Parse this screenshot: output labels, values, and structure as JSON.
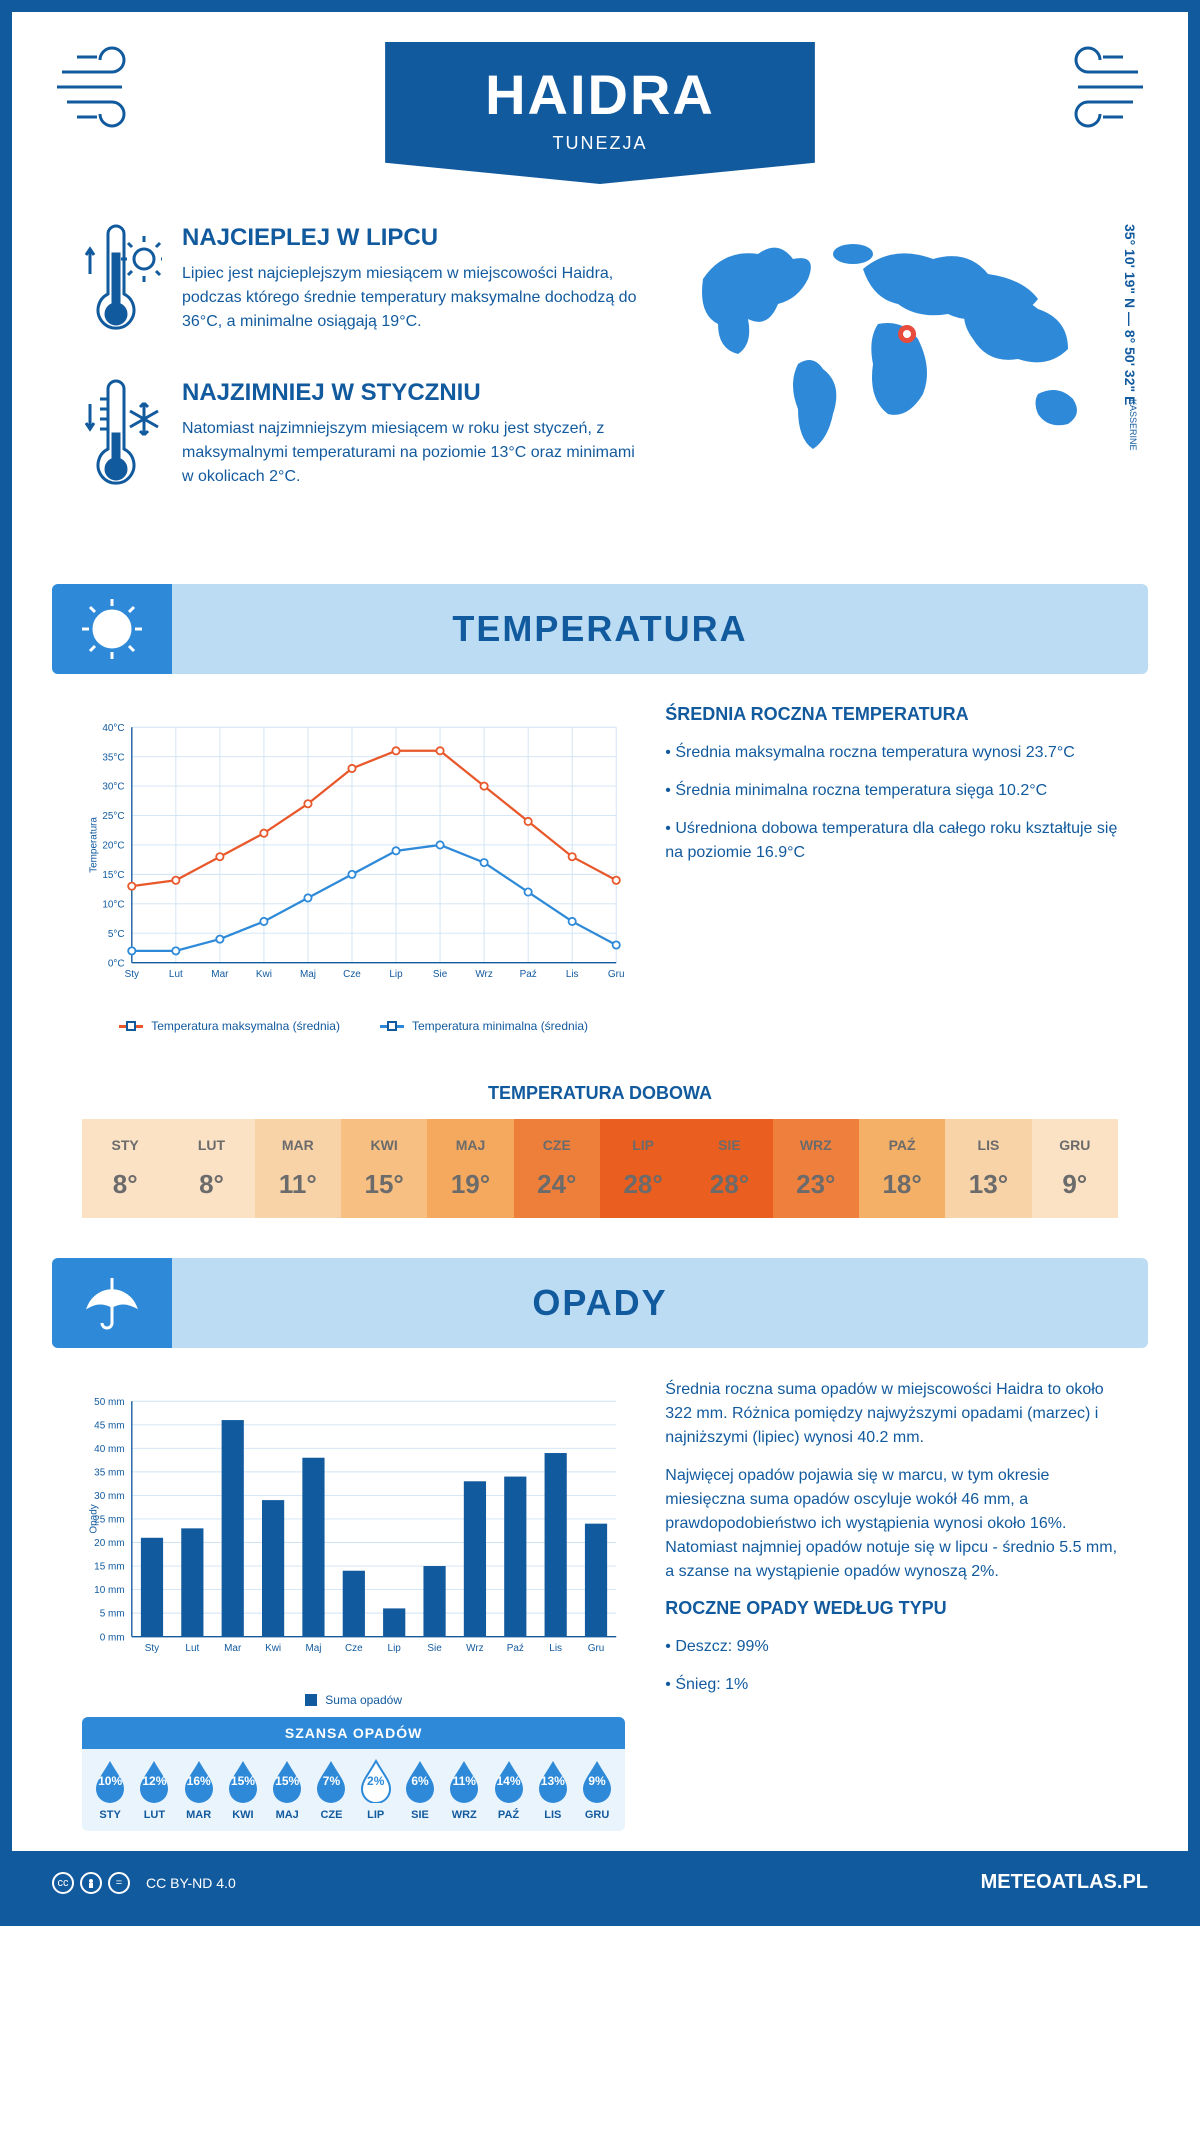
{
  "header": {
    "city": "HAIDRA",
    "country": "TUNEZJA"
  },
  "intro": {
    "hot": {
      "title": "NAJCIEPLEJ W LIPCU",
      "text": "Lipiec jest najcieplejszym miesiącem w miejscowości Haidra, podczas którego średnie temperatury maksymalne dochodzą do 36°C, a minimalne osiągają 19°C."
    },
    "cold": {
      "title": "NAJZIMNIEJ W STYCZNIU",
      "text": "Natomiast najzimniejszym miesiącem w roku jest styczeń, z maksymalnymi temperaturami na poziomie 13°C oraz minimami w okolicach 2°C."
    },
    "coords": "35° 10' 19\" N — 8° 50' 32\" E",
    "region": "KASSERINE",
    "marker": {
      "left_pct": 50,
      "top_pct": 42
    }
  },
  "months_short": [
    "Sty",
    "Lut",
    "Mar",
    "Kwi",
    "Maj",
    "Cze",
    "Lip",
    "Sie",
    "Wrz",
    "Paź",
    "Lis",
    "Gru"
  ],
  "months_upper": [
    "STY",
    "LUT",
    "MAR",
    "KWI",
    "MAJ",
    "CZE",
    "LIP",
    "SIE",
    "WRZ",
    "PAŹ",
    "LIS",
    "GRU"
  ],
  "temperature": {
    "section_title": "TEMPERATURA",
    "y_label": "Temperatura",
    "ylim": [
      0,
      40
    ],
    "ytick_step": 5,
    "ytick_suffix": "°C",
    "max_series": {
      "label": "Temperatura maksymalna (średnia)",
      "color": "#e8582b",
      "values": [
        13,
        14,
        18,
        22,
        27,
        33,
        36,
        36,
        30,
        24,
        18,
        14
      ]
    },
    "min_series": {
      "label": "Temperatura minimalna (średnia)",
      "color": "#2e8ad8",
      "values": [
        2,
        2,
        4,
        7,
        11,
        15,
        19,
        20,
        17,
        12,
        7,
        3
      ]
    },
    "grid_color": "#cfe3f4",
    "axis_color": "#125a9e",
    "side": {
      "title": "ŚREDNIA ROCZNA TEMPERATURA",
      "b1": "• Średnia maksymalna roczna temperatura wynosi 23.7°C",
      "b2": "• Średnia minimalna roczna temperatura sięga 10.2°C",
      "b3": "• Uśredniona dobowa temperatura dla całego roku kształtuje się na poziomie 16.9°C"
    },
    "daily": {
      "title": "TEMPERATURA DOBOWA",
      "values": [
        "8°",
        "8°",
        "11°",
        "15°",
        "19°",
        "24°",
        "28°",
        "28°",
        "23°",
        "18°",
        "13°",
        "9°"
      ],
      "colors": [
        "#fbe2c5",
        "#fbe2c5",
        "#f9d3a8",
        "#f7bf82",
        "#f4a95e",
        "#ee7f3b",
        "#ea5e1f",
        "#ea5e1f",
        "#ef7f3c",
        "#f5b068",
        "#f9d3a8",
        "#fbe2c5"
      ]
    }
  },
  "precip": {
    "section_title": "OPADY",
    "y_label": "Opady",
    "ylim": [
      0,
      50
    ],
    "ytick_step": 5,
    "ytick_suffix": " mm",
    "bar_color": "#125a9e",
    "grid_color": "#cfe3f4",
    "axis_color": "#125a9e",
    "series_label": "Suma opadów",
    "values": [
      21,
      23,
      46,
      29,
      38,
      14,
      6,
      15,
      33,
      34,
      39,
      24
    ],
    "side": {
      "p1": "Średnia roczna suma opadów w miejscowości Haidra to około 322 mm. Różnica pomiędzy najwyższymi opadami (marzec) i najniższymi (lipiec) wynosi 40.2 mm.",
      "p2": "Najwięcej opadów pojawia się w marcu, w tym okresie miesięczna suma opadów oscyluje wokół 46 mm, a prawdopodobieństwo ich wystąpienia wynosi około 16%. Natomiast najmniej opadów notuje się w lipcu - średnio 5.5 mm, a szanse na wystąpienie opadów wynoszą 2%.",
      "type_title": "ROCZNE OPADY WEDŁUG TYPU",
      "rain": "• Deszcz: 99%",
      "snow": "• Śnieg: 1%"
    },
    "chance": {
      "title": "SZANSA OPADÓW",
      "values": [
        "10%",
        "12%",
        "16%",
        "15%",
        "15%",
        "7%",
        "2%",
        "6%",
        "11%",
        "14%",
        "13%",
        "9%"
      ],
      "min_index": 6,
      "drop_fill": "#2e8ad8",
      "drop_fill_min": "#ffffff",
      "drop_stroke_min": "#2e8ad8"
    }
  },
  "footer": {
    "license": "CC BY-ND 4.0",
    "site": "METEOATLAS.PL"
  },
  "colors": {
    "primary": "#125a9e",
    "light": "#bcdcf4",
    "accent": "#2e8ad8"
  }
}
